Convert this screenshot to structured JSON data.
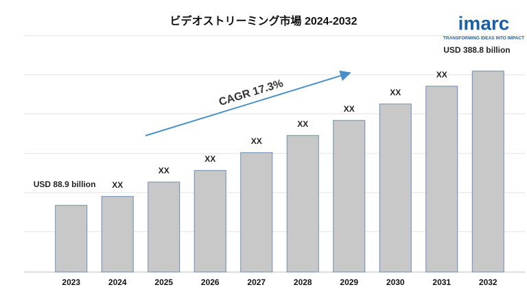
{
  "chart_data": {
    "type": "bar",
    "title": "ビデオストリーミング市場 2024-2032",
    "categories": [
      "2023",
      "2024",
      "2025",
      "2026",
      "2027",
      "2028",
      "2029",
      "2030",
      "2031",
      "2032"
    ],
    "values": [
      88.9,
      108.8,
      140.9,
      166.9,
      206.7,
      245.0,
      278.6,
      315.3,
      355.1,
      388.8
    ],
    "value_labels": [
      "USD 88.9 billion",
      "XX",
      "XX",
      "XX",
      "XX",
      "XX",
      "XX",
      "XX",
      "XX",
      "USD 388.8 billion"
    ],
    "color": "#c8c8c8",
    "ylim": [
      -60,
      468
    ],
    "annotation": "CAGR 17.3%"
  },
  "logo": {
    "name": "imarc",
    "tagline": "TRANSFORMING IDEAS INTO IMPACT"
  }
}
